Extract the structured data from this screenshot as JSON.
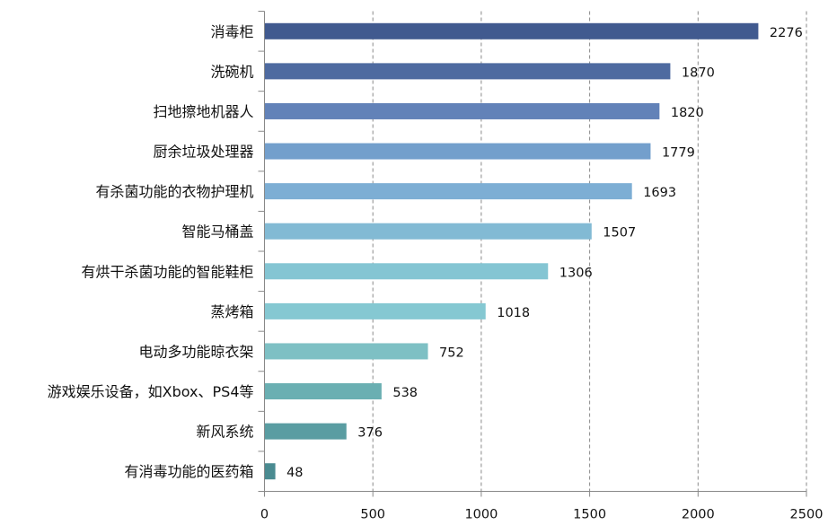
{
  "chart_data": {
    "type": "bar",
    "orientation": "horizontal",
    "categories": [
      "消毒柜",
      "洗碗机",
      "扫地擦地机器人",
      "厨余垃圾处理器",
      "有杀菌功能的衣物护理机",
      "智能马桶盖",
      "有烘干杀菌功能的智能鞋柜",
      "蒸烤箱",
      "电动多功能晾衣架",
      "游戏娱乐设备，如Xbox、PS4等",
      "新风系统",
      "有消毒功能的医药箱"
    ],
    "values": [
      2276,
      1870,
      1820,
      1779,
      1693,
      1507,
      1306,
      1018,
      752,
      538,
      376,
      48
    ],
    "colors": [
      "#415A8F",
      "#4E6AA0",
      "#6282B8",
      "#739FCC",
      "#7DAED4",
      "#82BAD4",
      "#84C5D3",
      "#85C8D2",
      "#7EC0C4",
      "#6AAFB2",
      "#5A9DA2",
      "#4A8B91"
    ],
    "xlim": [
      0,
      2500
    ],
    "xticks": [
      0,
      500,
      1000,
      1500,
      2000,
      2500
    ],
    "grid": "vertical dashed",
    "data_labels": true,
    "title": "",
    "xlabel": "",
    "ylabel": ""
  }
}
